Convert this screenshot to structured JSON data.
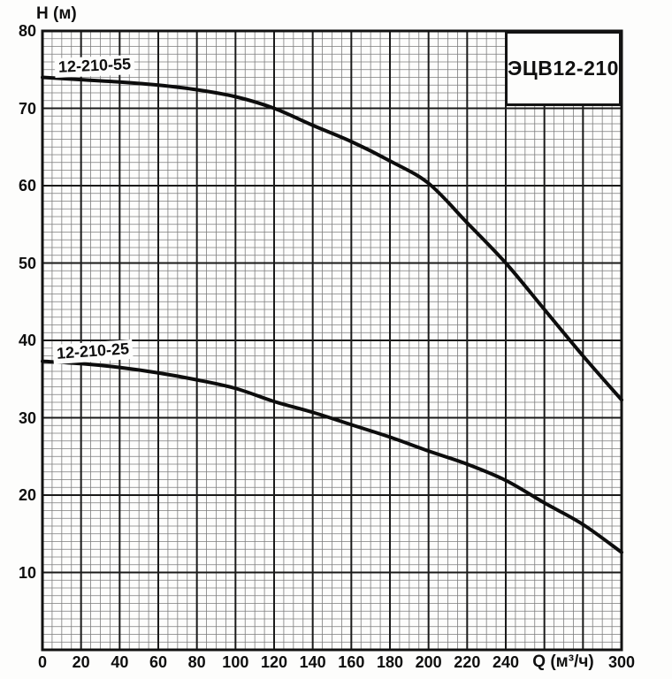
{
  "chart_data": {
    "type": "line",
    "title": "ЭЦВ12-210",
    "ylabel": "H (м)",
    "xlabel": "Q (м³/ч)",
    "xlim": [
      0,
      300
    ],
    "ylim": [
      0,
      80
    ],
    "x_major_step": 20,
    "x_minor_step": 5,
    "y_major_step": 10,
    "y_minor_step": 1,
    "grid": "minor+major engineering grid",
    "legend_position": "labels inline above curves",
    "xticks": [
      0,
      20,
      40,
      60,
      80,
      100,
      120,
      140,
      160,
      180,
      200,
      220,
      240,
      300
    ],
    "yticks": [
      80,
      70,
      60,
      50,
      40,
      30,
      20,
      10
    ],
    "series": [
      {
        "name": "12-210-55",
        "label": "12-210-55",
        "q": [
          0,
          20,
          40,
          60,
          80,
          100,
          120,
          140,
          160,
          180,
          200,
          220,
          240,
          260,
          280,
          300
        ],
        "h": [
          74,
          73.7,
          73.4,
          73,
          72.4,
          71.5,
          70,
          67.8,
          65.7,
          63.2,
          60.3,
          55.2,
          50,
          44,
          38,
          32.3
        ]
      },
      {
        "name": "12-210-25",
        "label": "12-210-25",
        "q": [
          0,
          20,
          40,
          60,
          80,
          100,
          120,
          140,
          160,
          180,
          200,
          220,
          240,
          260,
          280,
          300
        ],
        "h": [
          37.3,
          37,
          36.5,
          35.8,
          34.9,
          33.8,
          32.1,
          30.7,
          29.1,
          27.5,
          25.7,
          24,
          21.9,
          19,
          16.2,
          12.6
        ]
      }
    ],
    "colors": {
      "curve": "#0d0d0d",
      "grid_minor": "#7d7d7d",
      "grid_major": "#1a1a1a",
      "border": "#111111",
      "background": "#fdfdfc",
      "text": "#101010"
    }
  }
}
